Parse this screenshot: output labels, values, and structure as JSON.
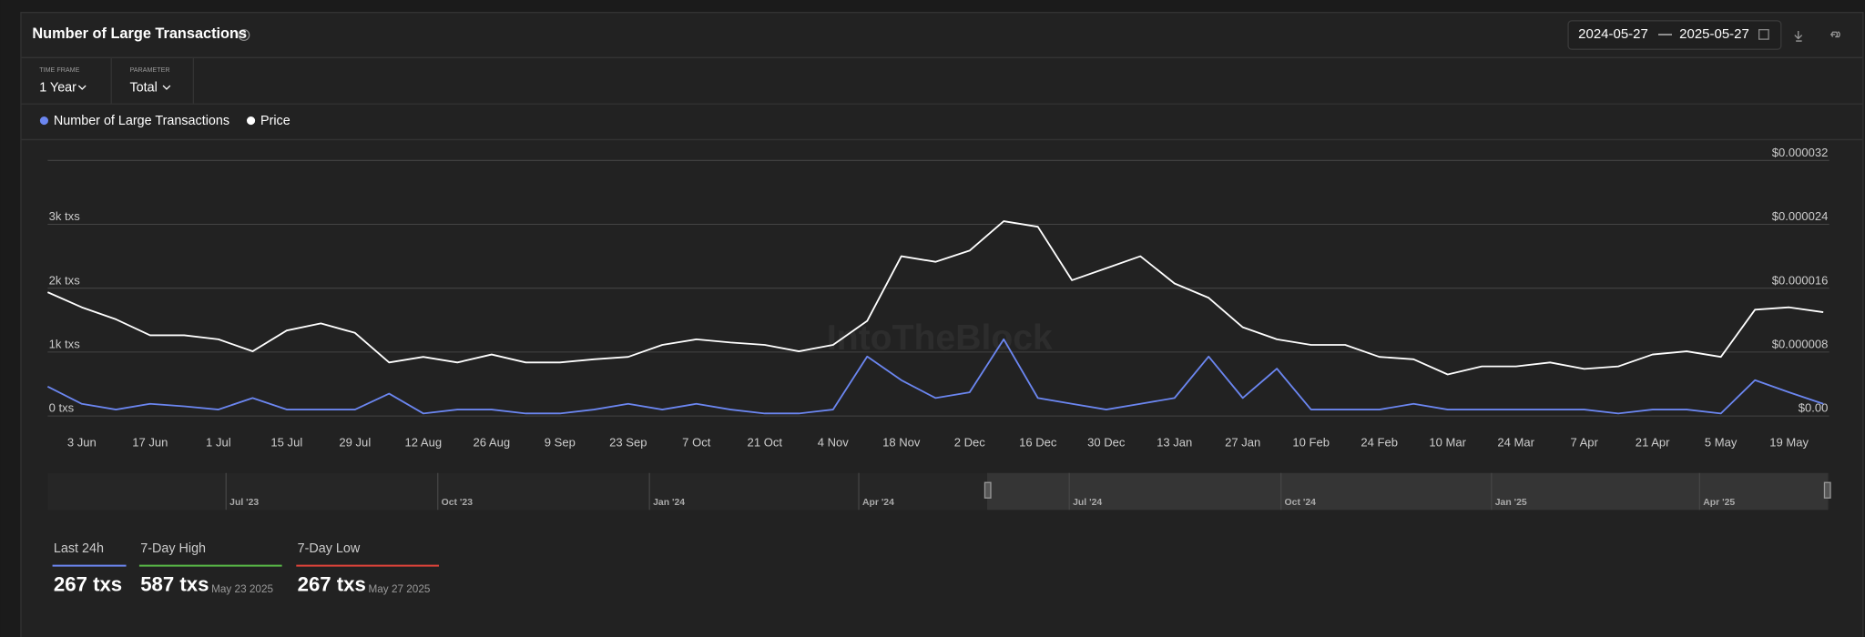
{
  "header": {
    "title": "Number of Large Transactions",
    "date_from": "2024-05-27",
    "date_sep": "—",
    "date_to": "2025-05-27"
  },
  "controls": [
    {
      "label": "TIME FRAME",
      "value": "1 Year"
    },
    {
      "label": "PARAMETER",
      "value": "Total"
    }
  ],
  "chart_data": {
    "type": "line",
    "watermark": "IntoTheBlock",
    "x": [
      null,
      "3 Jun",
      null,
      "17 Jun",
      null,
      "1 Jul",
      null,
      "15 Jul",
      null,
      "29 Jul",
      null,
      "12 Aug",
      null,
      "26 Aug",
      null,
      "9 Sep",
      null,
      "23 Sep",
      null,
      "7 Oct",
      null,
      "21 Oct",
      null,
      "4 Nov",
      null,
      "18 Nov",
      null,
      "2 Dec",
      null,
      "16 Dec",
      null,
      "30 Dec",
      null,
      "13 Jan",
      null,
      "27 Jan",
      null,
      "10 Feb",
      null,
      "24 Feb",
      null,
      "10 Mar",
      null,
      "24 Mar",
      null,
      "7 Apr",
      null,
      "21 Apr",
      null,
      "5 May",
      null,
      "19 May",
      null
    ],
    "series": [
      {
        "name": "Number of Large Transactions",
        "color": "#6b86f0",
        "axis": "y",
        "values": [
          460,
          190,
          100,
          190,
          150,
          100,
          280,
          100,
          100,
          100,
          350,
          40,
          100,
          100,
          40,
          40,
          100,
          190,
          100,
          190,
          100,
          40,
          40,
          100,
          930,
          560,
          280,
          370,
          1200,
          280,
          190,
          100,
          190,
          280,
          930,
          280,
          740,
          100,
          100,
          100,
          190,
          100,
          100,
          100,
          100,
          100,
          40,
          100,
          100,
          40,
          560,
          370,
          190
        ]
      },
      {
        "name": "Price",
        "color": "#ffffff",
        "axis": "y2",
        "values": [
          1.55e-05,
          1.36e-05,
          1.21e-05,
          1.01e-05,
          1.01e-05,
          9.6e-06,
          8.1e-06,
          1.07e-05,
          1.16e-05,
          1.04e-05,
          6.7e-06,
          7.4e-06,
          6.7e-06,
          7.7e-06,
          6.7e-06,
          6.7e-06,
          7.1e-06,
          7.4e-06,
          8.9e-06,
          9.6e-06,
          9.2e-06,
          8.9e-06,
          8.1e-06,
          8.9e-06,
          1.19e-05,
          2e-05,
          1.93e-05,
          2.07e-05,
          2.44e-05,
          2.37e-05,
          1.7e-05,
          1.85e-05,
          2e-05,
          1.66e-05,
          1.48e-05,
          1.11e-05,
          9.6e-06,
          8.9e-06,
          8.9e-06,
          7.4e-06,
          7.1e-06,
          5.2e-06,
          6.2e-06,
          6.2e-06,
          6.7e-06,
          5.9e-06,
          6.2e-06,
          7.7e-06,
          8.1e-06,
          7.4e-06,
          1.33e-05,
          1.36e-05,
          1.3e-05
        ]
      }
    ],
    "ylim": [
      0,
      4000
    ],
    "yticks": [
      {
        "value": 0,
        "label": "0 txs"
      },
      {
        "value": 1000,
        "label": "1k txs"
      },
      {
        "value": 2000,
        "label": "2k txs"
      },
      {
        "value": 3000,
        "label": "3k txs"
      }
    ],
    "y2lim": [
      0,
      3.2e-05
    ],
    "y2ticks": [
      {
        "value": 0,
        "label": "$0.00"
      },
      {
        "value": 8e-06,
        "label": "$0.000008"
      },
      {
        "value": 1.6e-05,
        "label": "$0.000016"
      },
      {
        "value": 2.4e-05,
        "label": "$0.000024"
      },
      {
        "value": 3.2e-05,
        "label": "$0.000032"
      }
    ],
    "grid": true
  },
  "navigator": {
    "labels": [
      "Jul '23",
      "Oct '23",
      "Jan '24",
      "Apr '24",
      "Jul '24",
      "Oct '24",
      "Jan '25",
      "Apr '25"
    ]
  },
  "stats": [
    {
      "label": "Last 24h",
      "value": "267 txs",
      "color": "#6b86f0"
    },
    {
      "label": "7-Day High",
      "value": "587 txs",
      "date": "May 23 2025",
      "color": "#58b947"
    },
    {
      "label": "7-Day Low",
      "value": "267 txs",
      "date": "May 27 2025",
      "color": "#e0443a"
    }
  ]
}
